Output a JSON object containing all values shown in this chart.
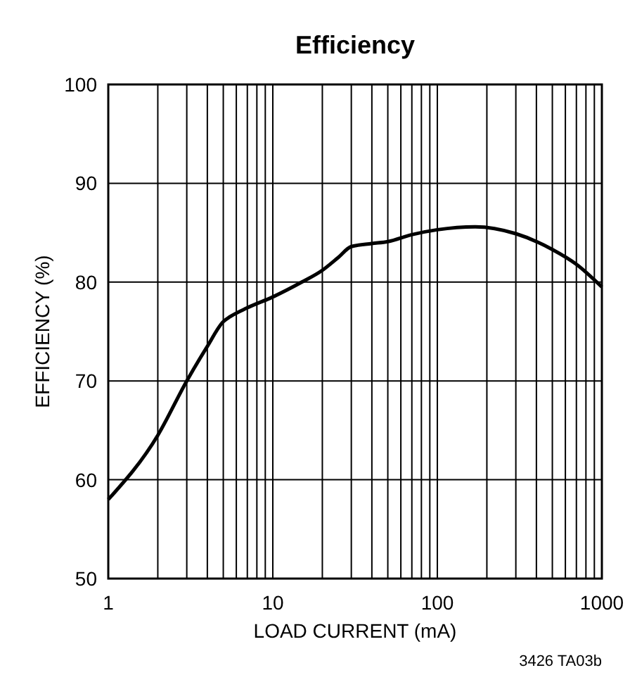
{
  "chart_data": {
    "type": "line",
    "title": "Efficiency",
    "xlabel": "LOAD CURRENT (mA)",
    "ylabel": "EFFICIENCY (%)",
    "log": "x",
    "grid": true,
    "x": [
      1,
      2,
      3,
      4,
      5,
      5.5,
      7,
      10,
      15,
      20,
      25,
      30,
      40,
      50,
      70,
      100,
      170,
      300,
      500,
      700,
      1000
    ],
    "series": [
      {
        "color": "#000000",
        "values": [
          58,
          64.5,
          70,
          73.5,
          76,
          76.5,
          77.4,
          78.5,
          80,
          81.2,
          82.5,
          83.6,
          83.9,
          84.1,
          84.8,
          85.3,
          85.6,
          84.9,
          83.3,
          81.8,
          79.5
        ]
      }
    ],
    "xlim": [
      1,
      1000
    ],
    "ylim": [
      50,
      100
    ],
    "yticks": [
      50,
      60,
      70,
      80,
      90,
      100
    ],
    "xticks": [
      1,
      {
        "value": 2,
        "label": null
      },
      {
        "value": 3,
        "label": null
      },
      {
        "value": 4,
        "label": null
      },
      {
        "value": 5,
        "label": null
      },
      {
        "value": 6,
        "label": null
      },
      {
        "value": 7,
        "label": null
      },
      {
        "value": 8,
        "label": null
      },
      {
        "value": 9,
        "label": null
      },
      10,
      {
        "value": 20,
        "label": null
      },
      {
        "value": 30,
        "label": null
      },
      {
        "value": 40,
        "label": null
      },
      {
        "value": 50,
        "label": null
      },
      {
        "value": 60,
        "label": null
      },
      {
        "value": 70,
        "label": null
      },
      {
        "value": 80,
        "label": null
      },
      {
        "value": 90,
        "label": null
      },
      100,
      {
        "value": 200,
        "label": null
      },
      {
        "value": 300,
        "label": null
      },
      {
        "value": 400,
        "label": null
      },
      {
        "value": 500,
        "label": null
      },
      {
        "value": 600,
        "label": null
      },
      {
        "value": 700,
        "label": null
      },
      {
        "value": 800,
        "label": null
      },
      {
        "value": 900,
        "label": null
      },
      1000
    ],
    "annotations": [
      "3426 TA03b"
    ]
  }
}
